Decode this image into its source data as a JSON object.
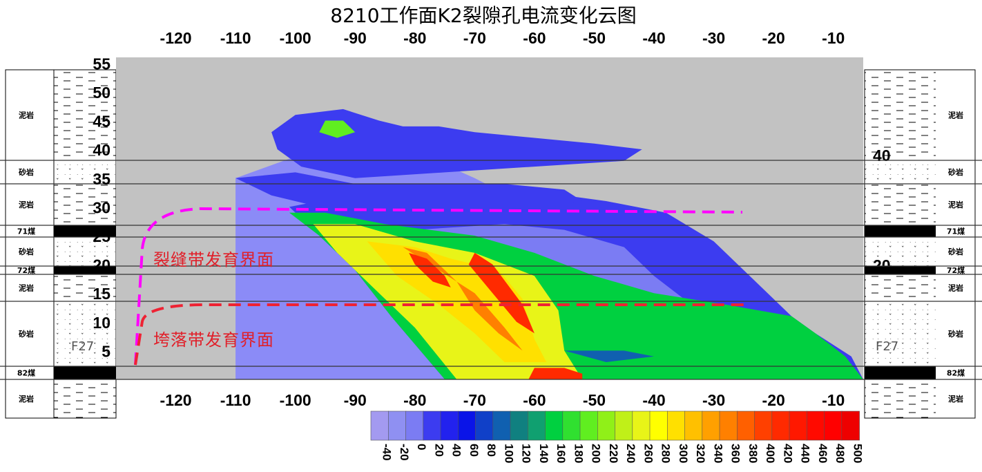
{
  "chart_data": {
    "type": "heatmap",
    "title": "8210工作面K2裂隙孔电流变化云图",
    "x_ticks": [
      -120,
      -110,
      -100,
      -90,
      -80,
      -70,
      -60,
      -50,
      -40,
      -30,
      -20,
      -10
    ],
    "xlim": [
      -130,
      -5
    ],
    "y_ticks": [
      5,
      10,
      15,
      20,
      25,
      30,
      35,
      40,
      45,
      50,
      55
    ],
    "ylim": [
      0,
      56
    ],
    "colorbar_ticks": [
      -40,
      -20,
      0,
      20,
      40,
      60,
      80,
      100,
      120,
      140,
      160,
      180,
      200,
      220,
      240,
      260,
      280,
      300,
      320,
      340,
      360,
      380,
      400,
      420,
      440,
      460,
      480,
      500
    ],
    "colorbar_colors": [
      "#a39af0",
      "#8f90f2",
      "#7b7cf3",
      "#3c3cf0",
      "#2222ee",
      "#0a14e8",
      "#1040c8",
      "#1060b0",
      "#108080",
      "#10a070",
      "#00d040",
      "#30e030",
      "#60ee20",
      "#90f018",
      "#c0f018",
      "#e8f418",
      "#ffff00",
      "#ffe000",
      "#ffc000",
      "#ffa000",
      "#ff8000",
      "#ff6000",
      "#ff4000",
      "#ff2a00",
      "#ff1800",
      "#ff0a00",
      "#ff0000",
      "#ee0000"
    ],
    "contours": [
      {
        "level": 0,
        "polygon": [
          [
            -110,
            0
          ],
          [
            -100,
            0
          ],
          [
            -93,
            0
          ],
          [
            -50,
            0
          ],
          [
            -5,
            0
          ],
          [
            -22,
            8
          ],
          [
            -40,
            17
          ],
          [
            -55,
            27
          ],
          [
            -70,
            35
          ],
          [
            -85,
            42
          ],
          [
            -99,
            46
          ],
          [
            -91,
            46
          ],
          [
            -86,
            44
          ],
          [
            -110,
            35
          ]
        ]
      },
      {
        "level": 20,
        "polygon": [
          [
            -101,
            30
          ],
          [
            -96,
            31
          ],
          [
            -88,
            31
          ],
          [
            -70,
            31
          ],
          [
            -55,
            32
          ],
          [
            -48,
            31
          ],
          [
            -38,
            29
          ],
          [
            -30,
            24
          ],
          [
            -23,
            17
          ],
          [
            -17,
            11
          ],
          [
            -13,
            8
          ],
          [
            -7,
            4
          ],
          [
            -5,
            0
          ],
          [
            -75,
            0
          ],
          [
            -84,
            11
          ],
          [
            -90,
            19
          ],
          [
            -96,
            25
          ]
        ]
      },
      {
        "level": 20,
        "polygon": [
          [
            -100,
            46
          ],
          [
            -92,
            47
          ],
          [
            -86,
            45
          ],
          [
            -82,
            44
          ],
          [
            -76,
            44
          ],
          [
            -70,
            43
          ],
          [
            -60,
            42
          ],
          [
            -50,
            41
          ],
          [
            -42,
            40
          ],
          [
            -45,
            38
          ],
          [
            -60,
            37
          ],
          [
            -75,
            36
          ],
          [
            -90,
            35
          ],
          [
            -99,
            37
          ],
          [
            -103,
            40
          ],
          [
            -104,
            43
          ]
        ]
      },
      {
        "level": 20,
        "polygon": [
          [
            -110,
            35
          ],
          [
            -100,
            36
          ],
          [
            -90,
            34
          ],
          [
            -80,
            34
          ],
          [
            -65,
            34
          ],
          [
            -55,
            33
          ],
          [
            -52,
            31
          ],
          [
            -60,
            30
          ],
          [
            -80,
            30
          ],
          [
            -96,
            30
          ],
          [
            -104,
            32
          ]
        ]
      },
      {
        "level": 0,
        "polygon": [
          [
            -80,
            26
          ],
          [
            -65,
            27
          ],
          [
            -55,
            26
          ],
          [
            -45,
            23
          ],
          [
            -40,
            18
          ],
          [
            -35,
            14
          ],
          [
            -48,
            14
          ],
          [
            -62,
            16
          ],
          [
            -75,
            20
          ]
        ]
      },
      {
        "level": 160,
        "polygon": [
          [
            -101,
            29
          ],
          [
            -95,
            29
          ],
          [
            -85,
            27
          ],
          [
            -70,
            25
          ],
          [
            -60,
            22
          ],
          [
            -50,
            18
          ],
          [
            -40,
            15
          ],
          [
            -28,
            13
          ],
          [
            -17,
            11
          ],
          [
            -13,
            8
          ],
          [
            -8,
            4
          ],
          [
            -5,
            0
          ],
          [
            -75,
            0
          ],
          [
            -84,
            11
          ],
          [
            -90,
            19
          ],
          [
            -96,
            25
          ]
        ]
      },
      {
        "level": 260,
        "polygon": [
          [
            -97,
            27
          ],
          [
            -90,
            27
          ],
          [
            -80,
            24
          ],
          [
            -70,
            22
          ],
          [
            -60,
            18
          ],
          [
            -56,
            12
          ],
          [
            -55,
            5
          ],
          [
            -52,
            0
          ],
          [
            -73,
            0
          ],
          [
            -80,
            9
          ],
          [
            -87,
            16
          ],
          [
            -93,
            22
          ]
        ]
      },
      {
        "level": 300,
        "polygon": [
          [
            -88,
            24
          ],
          [
            -80,
            23
          ],
          [
            -74,
            21
          ],
          [
            -66,
            19
          ],
          [
            -62,
            14
          ],
          [
            -60,
            7
          ],
          [
            -58,
            3
          ],
          [
            -65,
            3
          ],
          [
            -70,
            8
          ],
          [
            -76,
            13
          ],
          [
            -83,
            18
          ]
        ]
      },
      {
        "level": 360,
        "polygon": [
          [
            -82,
            23
          ],
          [
            -78,
            22
          ],
          [
            -73,
            17
          ],
          [
            -70,
            12
          ],
          [
            -66,
            8
          ],
          [
            -62,
            5
          ],
          [
            -65,
            9
          ],
          [
            -70,
            15
          ],
          [
            -76,
            19
          ]
        ]
      },
      {
        "level": 420,
        "polygon": [
          [
            -81,
            22
          ],
          [
            -78,
            21
          ],
          [
            -75,
            18
          ],
          [
            -74,
            16
          ],
          [
            -77,
            17
          ],
          [
            -80,
            20
          ]
        ]
      },
      {
        "level": 420,
        "polygon": [
          [
            -70,
            22
          ],
          [
            -67,
            20
          ],
          [
            -62,
            13
          ],
          [
            -60,
            8
          ],
          [
            -63,
            10
          ],
          [
            -67,
            15
          ],
          [
            -71,
            20
          ]
        ]
      },
      {
        "level": 420,
        "polygon": [
          [
            -60,
            2
          ],
          [
            -55,
            2
          ],
          [
            -52,
            1
          ],
          [
            -52,
            0
          ],
          [
            -61,
            0
          ]
        ]
      },
      {
        "level": 200,
        "polygon": [
          [
            -95,
            45
          ],
          [
            -92,
            45
          ],
          [
            -90,
            43
          ],
          [
            -93,
            42
          ],
          [
            -96,
            43
          ]
        ]
      },
      {
        "level": 100,
        "polygon": [
          [
            -55,
            5
          ],
          [
            -45,
            5
          ],
          [
            -40,
            4
          ],
          [
            -48,
            3
          ]
        ]
      }
    ]
  },
  "title": "8210工作面K2裂隙孔电流变化云图",
  "annotations": {
    "fracture_zone": "裂缝带发育界面",
    "caving_zone": "垮落带发育界面"
  },
  "left_column": {
    "layers": [
      "泥岩",
      "砂岩",
      "泥岩",
      "71煤",
      "砂岩",
      "72煤",
      "泥岩",
      "砂岩",
      "82煤",
      "泥岩"
    ],
    "borehole_label": "F27"
  },
  "right_column": {
    "layers": [
      "泥岩",
      "砂岩",
      "泥岩",
      "71煤",
      "砂岩",
      "72煤",
      "泥岩",
      "砂岩",
      "82煤",
      "泥岩"
    ],
    "scale_values": [
      "40",
      "20"
    ],
    "borehole_label": "F27"
  },
  "colors": {
    "background_gray": "#c2c2c2",
    "upper_blue": "#8b8bf7",
    "fracture_line": "#ff00ff",
    "caving_line": "#ee2233",
    "annotation_text": "#e0202a"
  }
}
